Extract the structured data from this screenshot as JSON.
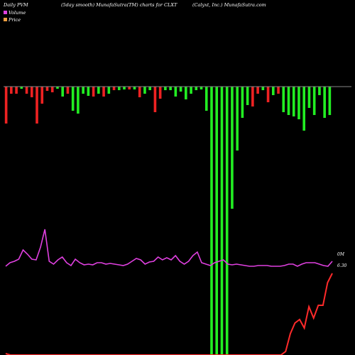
{
  "header": {
    "left": "Daily PVM",
    "center_left": "(5day smooth) MunafaSutra(TM) charts for CLXT",
    "center_right": "(Calyxt, Inc.) MunafaSutra.com"
  },
  "legend": {
    "items": [
      {
        "label": "Volume",
        "color": "#e040e0"
      },
      {
        "label": "Price",
        "color": "#f0a040"
      }
    ]
  },
  "labels": {
    "volume_right": "0M",
    "price_right": "6.30"
  },
  "colors": {
    "up_bar": "#22ee22",
    "down_bar": "#ee2222",
    "volume_line": "#e040e0",
    "price_line": "#ff2a2a",
    "baseline": "#888888",
    "background": "#000000"
  },
  "chart_data": {
    "type": "bar",
    "description_free": true,
    "bars": [
      {
        "dir": "down",
        "value": 52
      },
      {
        "dir": "down",
        "value": 10
      },
      {
        "dir": "down",
        "value": 10
      },
      {
        "dir": "up",
        "value": 3
      },
      {
        "dir": "down",
        "value": 10
      },
      {
        "dir": "down",
        "value": 15
      },
      {
        "dir": "down",
        "value": 52
      },
      {
        "dir": "down",
        "value": 24
      },
      {
        "dir": "down",
        "value": 6
      },
      {
        "dir": "down",
        "value": 8
      },
      {
        "dir": "up",
        "value": 3
      },
      {
        "dir": "up",
        "value": 14
      },
      {
        "dir": "down",
        "value": 10
      },
      {
        "dir": "up",
        "value": 34
      },
      {
        "dir": "up",
        "value": 38
      },
      {
        "dir": "up",
        "value": 10
      },
      {
        "dir": "up",
        "value": 13
      },
      {
        "dir": "down",
        "value": 14
      },
      {
        "dir": "up",
        "value": 10
      },
      {
        "dir": "down",
        "value": 14
      },
      {
        "dir": "up",
        "value": 10
      },
      {
        "dir": "down",
        "value": 5
      },
      {
        "dir": "up",
        "value": 5
      },
      {
        "dir": "up",
        "value": 4
      },
      {
        "dir": "down",
        "value": 4
      },
      {
        "dir": "up",
        "value": 4
      },
      {
        "dir": "down",
        "value": 15
      },
      {
        "dir": "up",
        "value": 10
      },
      {
        "dir": "up",
        "value": 5
      },
      {
        "dir": "down",
        "value": 36
      },
      {
        "dir": "down",
        "value": 17
      },
      {
        "dir": "up",
        "value": 5
      },
      {
        "dir": "up",
        "value": 5
      },
      {
        "dir": "up",
        "value": 14
      },
      {
        "dir": "up",
        "value": 7
      },
      {
        "dir": "up",
        "value": 18
      },
      {
        "dir": "up",
        "value": 10
      },
      {
        "dir": "up",
        "value": 5
      },
      {
        "dir": "up",
        "value": 4
      },
      {
        "dir": "up",
        "value": 34
      },
      {
        "dir": "up",
        "value": 400
      },
      {
        "dir": "up",
        "value": 400
      },
      {
        "dir": "up",
        "value": 400
      },
      {
        "dir": "up",
        "value": 400
      },
      {
        "dir": "up",
        "value": 172
      },
      {
        "dir": "up",
        "value": 90
      },
      {
        "dir": "up",
        "value": 44
      },
      {
        "dir": "up",
        "value": 26
      },
      {
        "dir": "down",
        "value": 28
      },
      {
        "dir": "down",
        "value": 10
      },
      {
        "dir": "up",
        "value": 5
      },
      {
        "dir": "down",
        "value": 22
      },
      {
        "dir": "up",
        "value": 12
      },
      {
        "dir": "down",
        "value": 10
      },
      {
        "dir": "up",
        "value": 36
      },
      {
        "dir": "up",
        "value": 40
      },
      {
        "dir": "up",
        "value": 42
      },
      {
        "dir": "up",
        "value": 46
      },
      {
        "dir": "up",
        "value": 62
      },
      {
        "dir": "up",
        "value": 30
      },
      {
        "dir": "up",
        "value": 40
      },
      {
        "dir": "up",
        "value": 12
      },
      {
        "dir": "up",
        "value": 44
      },
      {
        "dir": "up",
        "value": 40
      }
    ],
    "volume_line": [
      375,
      370,
      368,
      365,
      352,
      358,
      365,
      366,
      348,
      323,
      368,
      372,
      366,
      362,
      370,
      374,
      365,
      370,
      373,
      372,
      373,
      370,
      370,
      372,
      371,
      372,
      373,
      374,
      372,
      368,
      364,
      366,
      372,
      369,
      368,
      362,
      366,
      363,
      366,
      360,
      368,
      372,
      368,
      360,
      355,
      370,
      372,
      374,
      370,
      368,
      366,
      372,
      373,
      372,
      373,
      374,
      375,
      375,
      374,
      374,
      374,
      375,
      375,
      375,
      374,
      372,
      372,
      375,
      372,
      370,
      370,
      370,
      372,
      374,
      375,
      368
    ],
    "price_line": [
      498,
      500,
      500,
      500,
      500,
      500,
      500,
      500,
      500,
      500,
      500,
      500,
      500,
      500,
      500,
      500,
      500,
      500,
      500,
      500,
      500,
      500,
      500,
      500,
      500,
      500,
      500,
      500,
      500,
      500,
      500,
      500,
      500,
      500,
      500,
      500,
      500,
      500,
      500,
      500,
      500,
      500,
      500,
      500,
      500,
      500,
      500,
      500,
      500,
      500,
      500,
      500,
      500,
      500,
      500,
      500,
      500,
      500,
      500,
      500,
      495,
      470,
      455,
      450,
      462,
      432,
      448,
      430,
      430,
      398,
      385
    ]
  }
}
